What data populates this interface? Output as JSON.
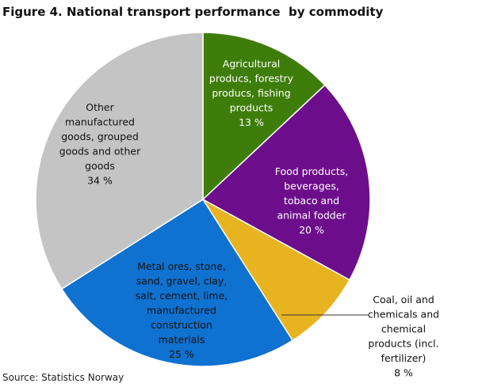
{
  "title": "Figure 4. National transport performance  by commodity",
  "source": "Source: Statistics Norway",
  "chart_data": {
    "type": "pie",
    "title": "Figure 4. National transport performance  by commodity",
    "start_angle_deg": 0,
    "direction": "clockwise",
    "slices": [
      {
        "label_lines": [
          "Agricultural",
          "producs, forestry",
          "producs, fishing",
          "products",
          "13 %"
        ],
        "value": 13,
        "color": "#3f7d0b",
        "text_color": "#ffffff"
      },
      {
        "label_lines": [
          "Food products,",
          "beverages,",
          "tobaco and",
          "animal fodder",
          "20 %"
        ],
        "value": 20,
        "color": "#6c0d8b",
        "text_color": "#ffffff"
      },
      {
        "label_lines": [
          "Coal, oil and",
          "chemicals  and",
          "chemical",
          "products (incl.",
          "fertilizer)",
          "8 %"
        ],
        "value": 8,
        "color": "#e8b320",
        "text_color": "#111111",
        "label_outside": true
      },
      {
        "label_lines": [
          "Metal ores,  stone,",
          "sand, gravel, clay,",
          "salt, cement, lime,",
          "manufactured",
          "construction",
          "materials",
          "25 %"
        ],
        "value": 25,
        "color": "#0f71d0",
        "text_color": "#111111"
      },
      {
        "label_lines": [
          "Other",
          "manufactured",
          "goods, grouped",
          "goods and other",
          "goods",
          "34 %"
        ],
        "value": 34,
        "color": "#c4c4c4",
        "text_color": "#111111"
      }
    ],
    "legend": "none"
  }
}
